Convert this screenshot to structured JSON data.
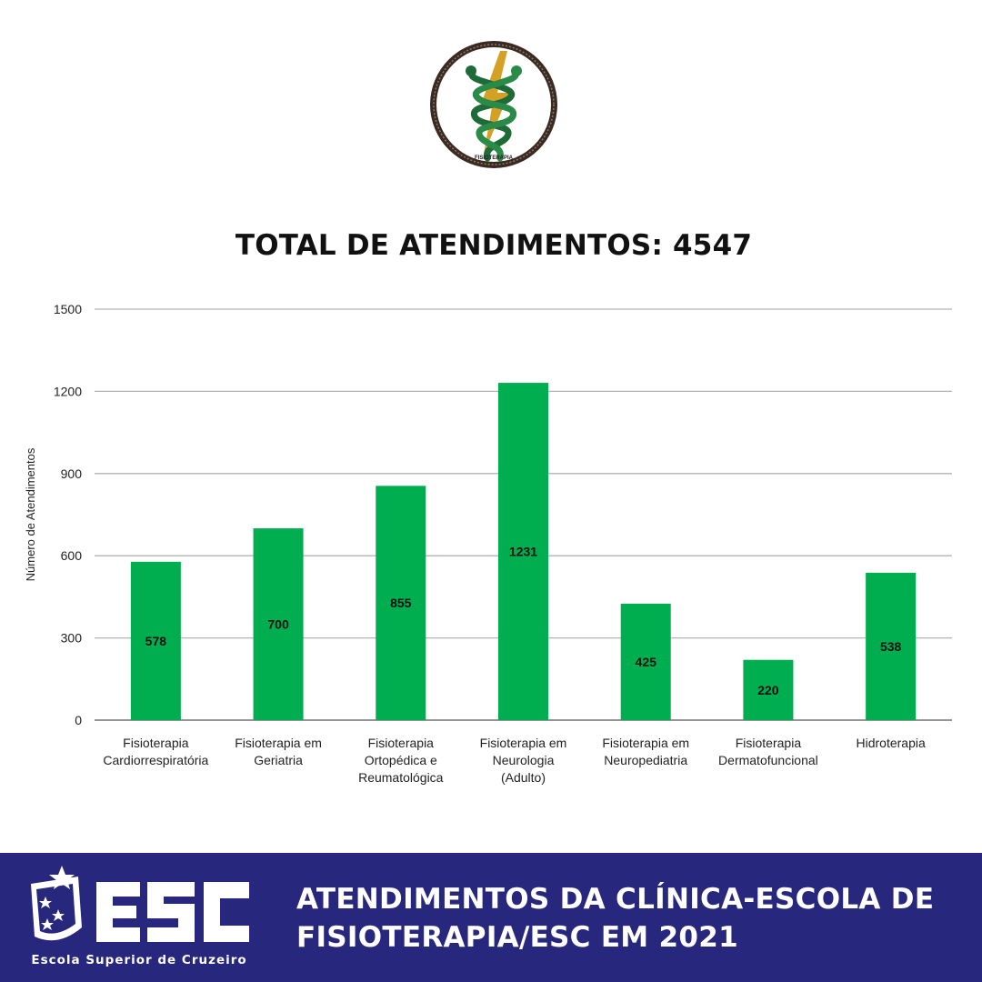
{
  "header": {
    "logo_name": "caduceus-fisioterapia-logo",
    "logo_text": "FISIOTERAPIA",
    "headline": "TOTAL DE ATENDIMENTOS: 4547"
  },
  "chart_data": {
    "type": "bar",
    "title": "",
    "xlabel": "",
    "ylabel": "Número de Atendimentos",
    "ylim": [
      0,
      1500
    ],
    "yticks": [
      0,
      300,
      600,
      900,
      1200,
      1500
    ],
    "grid": true,
    "bar_color": "#00ad4f",
    "categories": [
      [
        "Fisioterapia",
        "Cardiorrespiratória"
      ],
      [
        "Fisioterapia em",
        "Geriatria"
      ],
      [
        "Fisioterapia",
        "Ortopédica e",
        "Reumatológica"
      ],
      [
        "Fisioterapia em",
        "Neurologia",
        "(Adulto)"
      ],
      [
        "Fisioterapia em",
        "Neuropediatria"
      ],
      [
        "Fisioterapia",
        "Dermatofuncional"
      ],
      [
        "Hidroterapia"
      ]
    ],
    "values": [
      578,
      700,
      855,
      1231,
      425,
      220,
      538
    ]
  },
  "footer": {
    "background": "#27277d",
    "title_line1": "ATENDIMENTOS DA CLÍNICA-ESCOLA DE",
    "title_line2": "FISIOTERAPIA/ESC EM 2021",
    "logo_letters": "ESC",
    "logo_tagline": "Escola Superior de Cruzeiro"
  }
}
